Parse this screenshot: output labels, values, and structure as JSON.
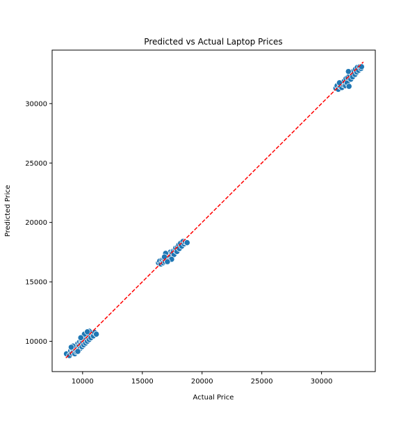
{
  "chart_data": {
    "type": "scatter",
    "title": "Predicted vs Actual Laptop Prices",
    "xlabel": "Actual Price",
    "ylabel": "Predicted Price",
    "xlim": [
      7450,
      34500
    ],
    "ylim": [
      7450,
      34500
    ],
    "xticks": [
      10000,
      15000,
      20000,
      25000,
      30000
    ],
    "yticks": [
      10000,
      15000,
      20000,
      25000,
      30000
    ],
    "grid": false,
    "legend": false,
    "colors": {
      "points": "#1f77b4",
      "point_edge": "#ffffff",
      "reference_line": "#ff0000"
    },
    "reference_line": {
      "style": "dashed",
      "from": [
        8600,
        8600
      ],
      "to": [
        33500,
        33500
      ]
    },
    "series": [
      {
        "points": [
          [
            8650,
            8950
          ],
          [
            8900,
            8800
          ],
          [
            9000,
            9200
          ],
          [
            9100,
            9000
          ],
          [
            9150,
            9350
          ],
          [
            9250,
            9100
          ],
          [
            9300,
            9500
          ],
          [
            9350,
            8950
          ],
          [
            9400,
            9300
          ],
          [
            9450,
            9650
          ],
          [
            9500,
            9100
          ],
          [
            9550,
            9450
          ],
          [
            9600,
            9800
          ],
          [
            9650,
            9250
          ],
          [
            9700,
            9600
          ],
          [
            9750,
            9950
          ],
          [
            9800,
            9400
          ],
          [
            9850,
            9750
          ],
          [
            9900,
            10100
          ],
          [
            9950,
            9550
          ],
          [
            10000,
            9900
          ],
          [
            10050,
            10250
          ],
          [
            10100,
            9700
          ],
          [
            10150,
            10050
          ],
          [
            10200,
            10400
          ],
          [
            10250,
            9850
          ],
          [
            10300,
            10200
          ],
          [
            10350,
            10550
          ],
          [
            10400,
            10000
          ],
          [
            10450,
            10350
          ],
          [
            10500,
            10700
          ],
          [
            10550,
            10150
          ],
          [
            10600,
            10500
          ],
          [
            10650,
            10800
          ],
          [
            10700,
            10300
          ],
          [
            10800,
            10650
          ],
          [
            10900,
            10450
          ],
          [
            11000,
            10750
          ],
          [
            11150,
            10600
          ],
          [
            9200,
            9600
          ],
          [
            9600,
            9150
          ],
          [
            10150,
            10600
          ],
          [
            10550,
            10850
          ],
          [
            9050,
            9500
          ],
          [
            9850,
            10300
          ],
          [
            10400,
            10800
          ],
          [
            16350,
            16600
          ],
          [
            16450,
            16750
          ],
          [
            16550,
            16500
          ],
          [
            16650,
            16850
          ],
          [
            16750,
            16600
          ],
          [
            16800,
            16950
          ],
          [
            16900,
            16700
          ],
          [
            17000,
            17050
          ],
          [
            17050,
            16800
          ],
          [
            17150,
            17200
          ],
          [
            17200,
            16950
          ],
          [
            17300,
            17350
          ],
          [
            17350,
            17500
          ],
          [
            17400,
            17150
          ],
          [
            17500,
            17450
          ],
          [
            17600,
            17600
          ],
          [
            17650,
            17300
          ],
          [
            17750,
            17650
          ],
          [
            17800,
            17850
          ],
          [
            17900,
            17550
          ],
          [
            17950,
            17950
          ],
          [
            18050,
            18100
          ],
          [
            18100,
            17800
          ],
          [
            18200,
            18250
          ],
          [
            18300,
            18000
          ],
          [
            18400,
            18400
          ],
          [
            18500,
            18200
          ],
          [
            18600,
            18350
          ],
          [
            18750,
            18300
          ],
          [
            16950,
            17400
          ],
          [
            17450,
            16900
          ],
          [
            17100,
            16700
          ],
          [
            16850,
            17100
          ],
          [
            31200,
            31300
          ],
          [
            31300,
            31500
          ],
          [
            31400,
            31200
          ],
          [
            31550,
            31450
          ],
          [
            31650,
            31700
          ],
          [
            31700,
            31350
          ],
          [
            31800,
            31600
          ],
          [
            31900,
            31900
          ],
          [
            32000,
            31500
          ],
          [
            32050,
            32100
          ],
          [
            32150,
            31750
          ],
          [
            32200,
            32200
          ],
          [
            32300,
            31450
          ],
          [
            32350,
            32400
          ],
          [
            32450,
            32050
          ],
          [
            32500,
            32600
          ],
          [
            32600,
            32250
          ],
          [
            32700,
            32750
          ],
          [
            32800,
            32450
          ],
          [
            32850,
            32900
          ],
          [
            32950,
            32650
          ],
          [
            33000,
            33050
          ],
          [
            33100,
            32800
          ],
          [
            33200,
            33100
          ],
          [
            33300,
            32950
          ],
          [
            33350,
            33100
          ],
          [
            32250,
            32700
          ],
          [
            31500,
            31750
          ]
        ]
      }
    ]
  }
}
